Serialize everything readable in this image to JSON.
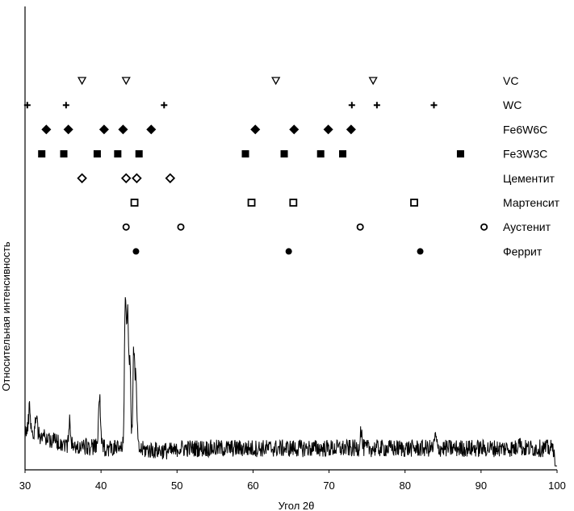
{
  "chart_data": {
    "type": "line",
    "xlabel": "Угол 2θ",
    "ylabel": "Относительная интенсивность",
    "xlim": [
      30,
      100
    ],
    "xticks": [
      30,
      40,
      50,
      60,
      70,
      80,
      90,
      100
    ],
    "grid": false,
    "pattern_peaks": [
      {
        "x": 43.2,
        "y": 0.93
      },
      {
        "x": 43.5,
        "y": 0.88
      },
      {
        "x": 44.3,
        "y": 0.65
      },
      {
        "x": 43.8,
        "y": 0.55
      },
      {
        "x": 44.6,
        "y": 0.5
      },
      {
        "x": 39.8,
        "y": 0.42
      },
      {
        "x": 30.6,
        "y": 0.34
      },
      {
        "x": 31.5,
        "y": 0.31
      },
      {
        "x": 35.9,
        "y": 0.26
      },
      {
        "x": 74.2,
        "y": 0.22
      },
      {
        "x": 95.0,
        "y": 0.18
      },
      {
        "x": 84.0,
        "y": 0.18
      }
    ],
    "phases": [
      {
        "name": "VC",
        "marker": "triangle-down-open",
        "positions": [
          37.5,
          43.3,
          63.0,
          75.8
        ]
      },
      {
        "name": "WC",
        "marker": "plus",
        "positions": [
          30.3,
          35.4,
          48.3,
          73.0,
          76.3,
          83.8
        ]
      },
      {
        "name": "Fe6W6C",
        "marker": "diamond-filled",
        "positions": [
          32.8,
          35.7,
          40.4,
          42.9,
          46.6,
          60.3,
          65.4,
          69.9,
          72.9
        ]
      },
      {
        "name": "Fe3W3C",
        "marker": "square-filled",
        "positions": [
          32.2,
          35.1,
          39.5,
          42.2,
          45.0,
          59.0,
          64.1,
          68.9,
          71.8,
          87.3
        ]
      },
      {
        "name": "Цементит",
        "marker": "diamond-open",
        "positions": [
          37.5,
          43.3,
          44.7,
          49.1
        ]
      },
      {
        "name": "Мартенсит",
        "marker": "square-open",
        "positions": [
          44.4,
          59.8,
          65.3,
          81.2
        ]
      },
      {
        "name": "Аустенит",
        "marker": "circle-open",
        "positions": [
          43.3,
          50.5,
          74.1,
          90.4
        ]
      },
      {
        "name": "Феррит",
        "marker": "circle-filled",
        "positions": [
          44.6,
          64.7,
          82.0
        ]
      }
    ]
  }
}
